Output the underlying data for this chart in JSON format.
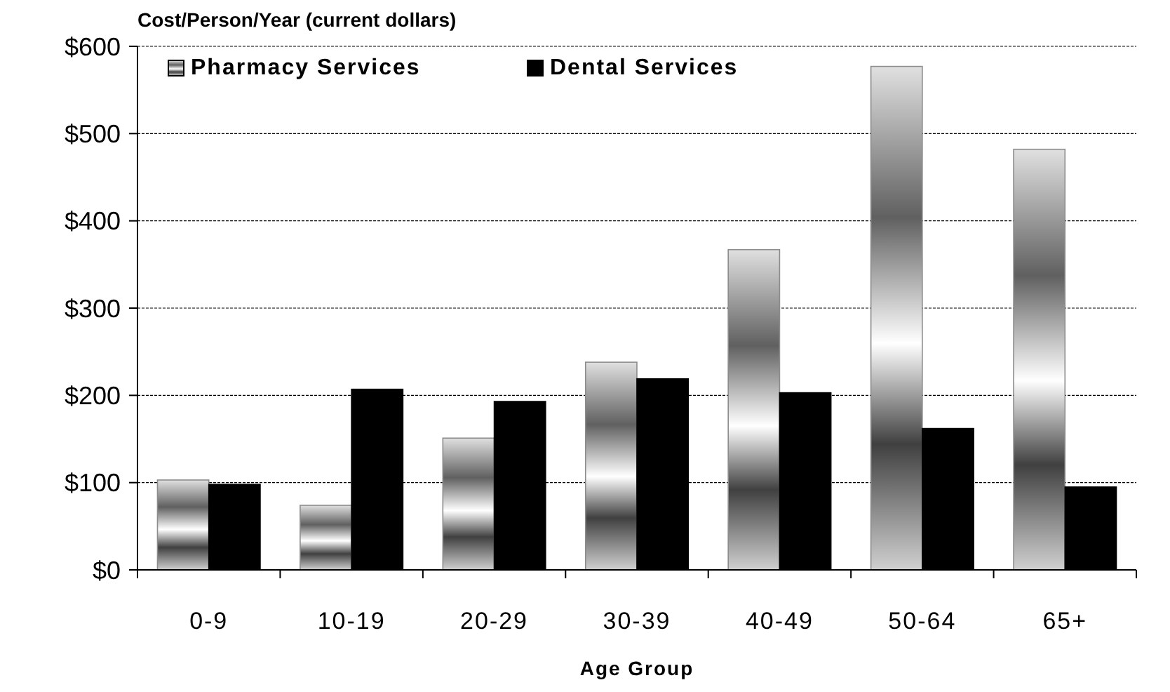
{
  "chart_data": {
    "type": "bar",
    "title": "Cost/Person/Year (current dollars)",
    "xlabel": "Age Group",
    "categories": [
      "0-9",
      "10-19",
      "20-29",
      "30-39",
      "40-49",
      "50-64",
      "65+"
    ],
    "series": [
      {
        "name": "Pharmacy Services",
        "color": "#8c8c8c",
        "values": [
          103,
          74,
          151,
          238,
          367,
          577,
          482
        ]
      },
      {
        "name": "Dental Services",
        "color": "#000000",
        "values": [
          98,
          207,
          193,
          219,
          203,
          162,
          95
        ]
      }
    ],
    "ylim": [
      0,
      600
    ],
    "yticks": [
      {
        "value": 0,
        "label": "$0"
      },
      {
        "value": 100,
        "label": "$100"
      },
      {
        "value": 200,
        "label": "$200"
      },
      {
        "value": 300,
        "label": "$300"
      },
      {
        "value": 400,
        "label": "$400"
      },
      {
        "value": 500,
        "label": "$500"
      },
      {
        "value": 600,
        "label": "$600"
      }
    ],
    "grid": "y",
    "legend": "top left"
  }
}
